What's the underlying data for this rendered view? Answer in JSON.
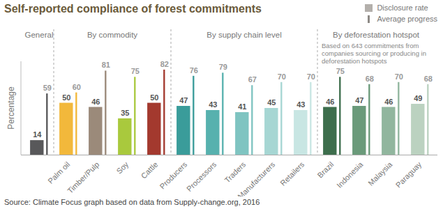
{
  "chart_data": {
    "type": "bar",
    "title": "Self-reported compliance of forest commitments",
    "y_label": "Percentage",
    "note": "Based on 643 commitments from companies sourcing or producing in deforestation hotspots",
    "source": "Source: Climate Focus graph based on data from Supply-change.org, 2016",
    "groups": [
      {
        "label": "General",
        "size": 1
      },
      {
        "label": "By commodity",
        "size": 4
      },
      {
        "label": "By supply chain level",
        "size": 5
      },
      {
        "label": "By deforestation hotspot",
        "size": 4
      }
    ],
    "categories": [
      null,
      "Palm oil",
      "Timber/Pulp",
      "Soy",
      "Cattle",
      "Producers",
      "Processors",
      "Traders",
      "Manufacturers",
      "Retailers",
      "Brazil",
      "Indonesia",
      "Malaysia",
      "Paraguay"
    ],
    "series": [
      {
        "name": "Disclosure rate",
        "color": "#b3afab",
        "colors": [
          "#58585a",
          "#f2b83b",
          "#9b8a7a",
          "#a9c93d",
          "#a3392e",
          "#3a9c9a",
          "#57b1ae",
          "#7fc4c1",
          "#a6d6d3",
          "#c8e6e3",
          "#3d6e4c",
          "#6a9a7a",
          "#91b69e",
          "#bbd2c0"
        ],
        "values": [
          14,
          50,
          46,
          35,
          50,
          47,
          43,
          41,
          45,
          43,
          46,
          47,
          46,
          49
        ]
      },
      {
        "name": "Average progress",
        "color": "#8e8a86",
        "colors": [
          "#58585a",
          "#f2b83b",
          "#9b8a7a",
          "#a9c93d",
          "#a3392e",
          "#3a9c9a",
          "#57b1ae",
          "#7fc4c1",
          "#a6d6d3",
          "#c8e6e3",
          "#3d6e4c",
          "#6a9a7a",
          "#91b69e",
          "#bbd2c0"
        ],
        "values": [
          59,
          60,
          81,
          75,
          82,
          76,
          79,
          67,
          70,
          70,
          75,
          68,
          70,
          68
        ]
      }
    ],
    "ylim": [
      0,
      90
    ],
    "tick_labels": "x",
    "data_labels": true,
    "legend": "top-right"
  }
}
